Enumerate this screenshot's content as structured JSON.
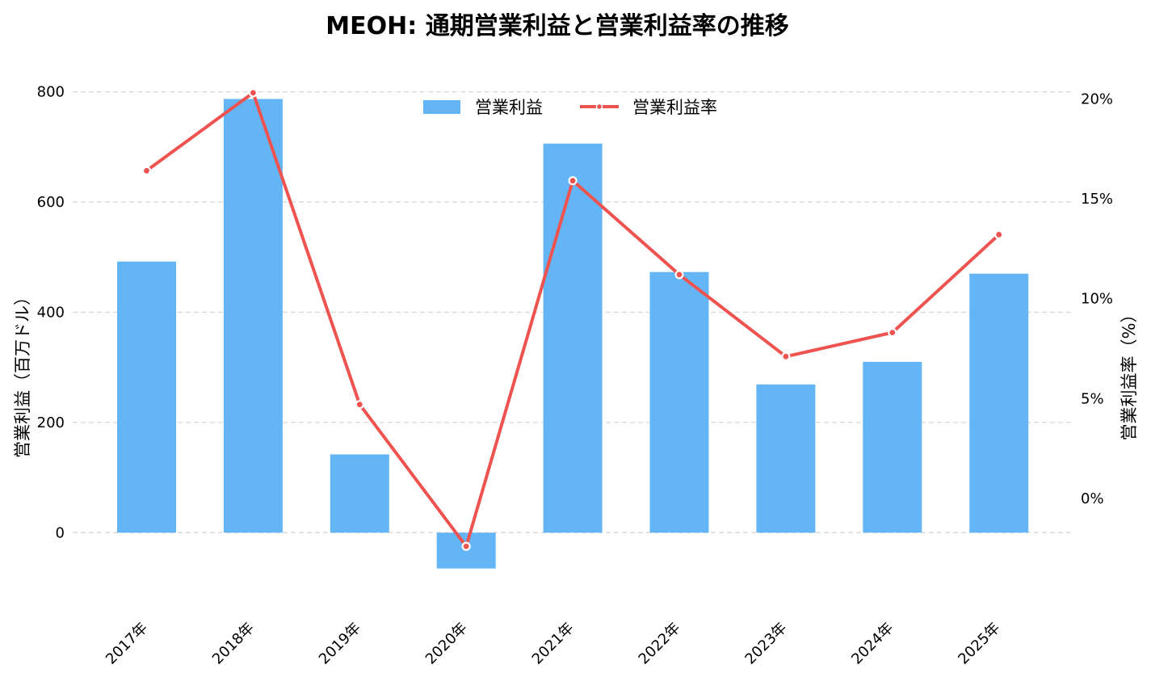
{
  "chart_data": {
    "type": "bar",
    "title": "MEOH: 通期営業利益と営業利益率の推移",
    "categories": [
      "2017年",
      "2018年",
      "2019年",
      "2020年",
      "2021年",
      "2022年",
      "2023年",
      "2024年",
      "2025年"
    ],
    "series": [
      {
        "name": "営業利益",
        "type": "bar",
        "axis": "left",
        "color": "#64B5F6",
        "values": [
          492,
          787,
          142,
          -65,
          706,
          473,
          269,
          310,
          470
        ]
      },
      {
        "name": "営業利益率",
        "type": "line",
        "axis": "right",
        "color": "#EF5350",
        "values": [
          16.4,
          20.3,
          4.7,
          -2.4,
          15.9,
          11.2,
          7.1,
          8.3,
          13.2
        ]
      }
    ],
    "ylabel": "営業利益（百万ドル）",
    "y2label": "営業利益率（%）",
    "yticks": [
      0,
      200,
      400,
      600,
      800
    ],
    "ytick_labels": [
      "0",
      "200",
      "400",
      "600",
      "800"
    ],
    "y2ticks": [
      0,
      5,
      10,
      15,
      20
    ],
    "y2tick_labels": [
      "0%",
      "5%",
      "10%",
      "15%",
      "20%"
    ],
    "ylim": [
      -130,
      820
    ],
    "y2lim": [
      -5.3,
      20.9
    ],
    "grid": true,
    "legend_position": "top-center"
  }
}
